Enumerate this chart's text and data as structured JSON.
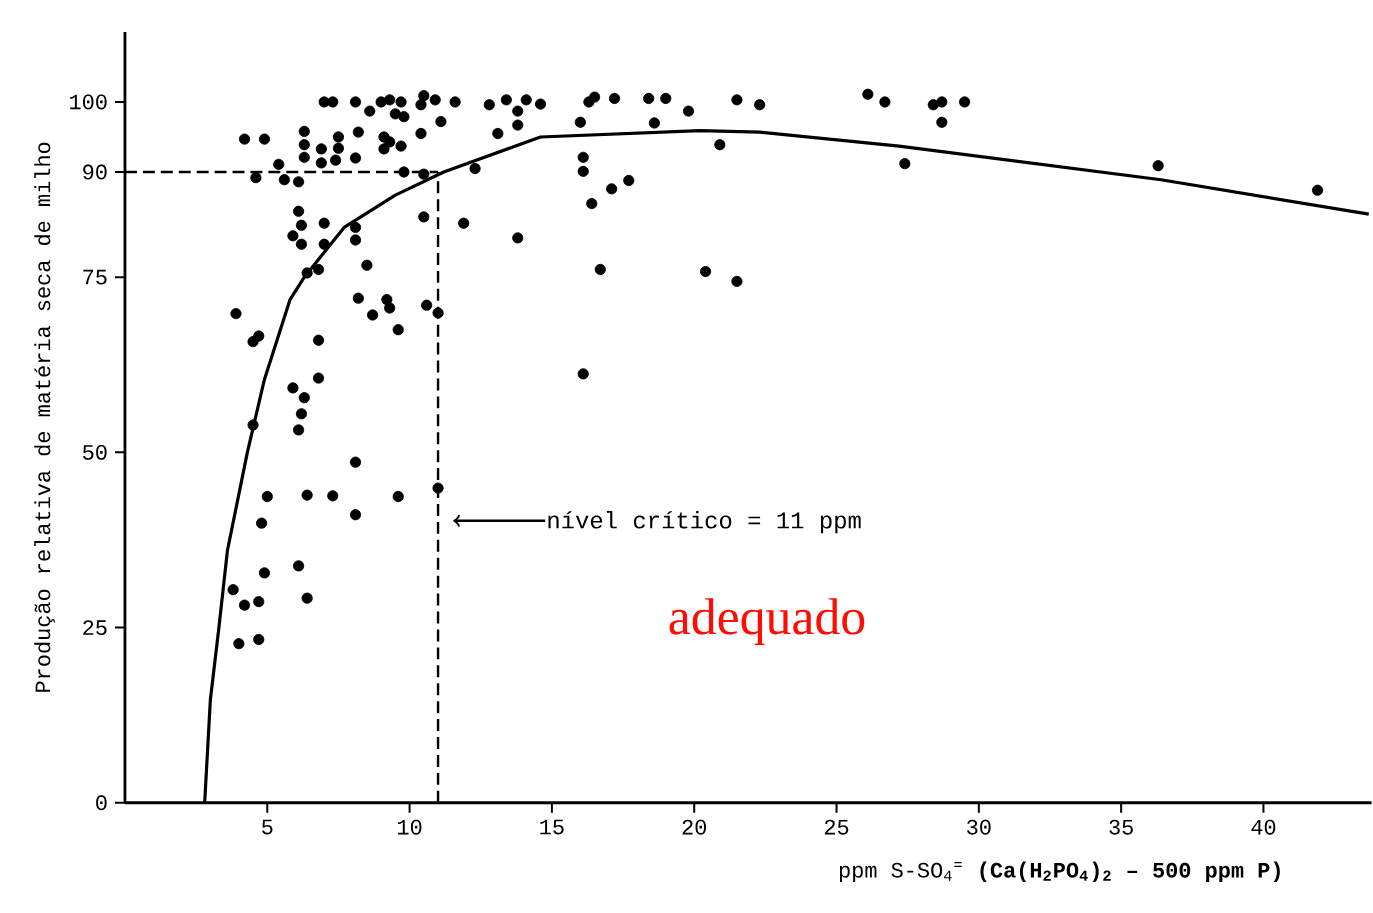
{
  "chart_data": {
    "type": "scatter",
    "xlabel": "ppm S-SO$_{4}$$^{=}$ **(Ca(H$_{2}$PO$_{4}$)$_{2}$ – 500 ppm P)**",
    "ylabel": "Produção relativa de matéria seca de milho",
    "xlim": [
      0,
      43.8
    ],
    "ylim": [
      0,
      110
    ],
    "xticks": [
      5,
      10,
      15,
      20,
      25,
      30,
      35,
      40
    ],
    "yticks": [
      0,
      25,
      50,
      75,
      90,
      100
    ],
    "series": [
      {
        "color": "#000000",
        "marker": "circle",
        "x": [
          4.2,
          4.9,
          4.6,
          5.4,
          5.6,
          6.1,
          6.3,
          6.3,
          6.3,
          6.1,
          6.2,
          5.9,
          6.2,
          6.4,
          6.8,
          6.9,
          6.9,
          7.0,
          7.3,
          7.4,
          7.5,
          7.5,
          7.0,
          7.0,
          8.1,
          8.2,
          8.1,
          8.1,
          8.1,
          8.6,
          9.0,
          9.3,
          9.7,
          9.1,
          9.1,
          9.3,
          9.7,
          9.5,
          9.8,
          9.8,
          10.4,
          10.5,
          10.9,
          10.4,
          11.1,
          10.5,
          11.6,
          10.5,
          12.3,
          11.9,
          8.5,
          8.2,
          8.7,
          9.2,
          9.3,
          9.6,
          10.6,
          11.0,
          3.9,
          4.5,
          4.7,
          6.8,
          6.8,
          5.9,
          6.3,
          6.2,
          6.1,
          4.5,
          8.1,
          5.0,
          6.4,
          7.3,
          9.6,
          11.0,
          8.1,
          4.8,
          4.9,
          6.1,
          3.8,
          4.2,
          4.7,
          6.4,
          4.0,
          4.7,
          12.8,
          13.4,
          13.8,
          14.1,
          14.6,
          13.1,
          13.8,
          16.0,
          16.1,
          16.1,
          16.3,
          16.5,
          17.2,
          18.4,
          19.0,
          18.6,
          19.8,
          17.1,
          17.7,
          16.4,
          13.8,
          16.7,
          20.4,
          21.5,
          16.1,
          20.9,
          21.5,
          22.3,
          26.1,
          26.7,
          27.4,
          28.4,
          28.7,
          28.7,
          29.5,
          36.3,
          41.9
        ],
        "values": [
          94.7,
          94.7,
          89.2,
          91.1,
          88.9,
          88.6,
          95.8,
          93.9,
          92.1,
          84.4,
          82.4,
          80.9,
          79.7,
          75.6,
          76.1,
          91.3,
          93.3,
          100,
          100,
          91.7,
          93.4,
          95.0,
          82.7,
          79.7,
          100,
          95.7,
          92.0,
          82.1,
          80.3,
          98.7,
          100,
          100.3,
          100,
          95.0,
          93.3,
          94.3,
          93.7,
          98.3,
          97.9,
          90,
          99.6,
          100.9,
          100.3,
          95.5,
          97.2,
          89.7,
          100,
          83.6,
          90.5,
          82.7,
          76.7,
          72.0,
          69.6,
          71.8,
          70.6,
          67.5,
          71.0,
          69.9,
          69.8,
          65.8,
          66.6,
          66.0,
          60.6,
          59.2,
          57.8,
          55.5,
          53.2,
          53.9,
          48.6,
          43.7,
          43.9,
          43.8,
          43.7,
          44.9,
          41.1,
          39.9,
          32.8,
          33.8,
          30.4,
          28.2,
          28.7,
          29.2,
          22.7,
          23.3,
          99.6,
          100.3,
          98.7,
          100.3,
          99.7,
          95.5,
          96.7,
          97.1,
          92.1,
          90.1,
          100,
          100.7,
          100.5,
          100.5,
          100.5,
          97.0,
          98.7,
          87.6,
          88.8,
          85.5,
          80.6,
          76.1,
          75.8,
          74.4,
          61.2,
          93.9,
          100.3,
          99.6,
          101.1,
          100,
          91.2,
          99.6,
          100,
          97.1,
          100,
          90.9,
          87.4
        ]
      },
      {
        "type": "line",
        "color": "#000000",
        "marker": "none",
        "x": [
          2.8,
          3.0,
          3.3,
          3.6,
          4.3,
          4.9,
          5.8,
          6.3,
          7.7,
          9.5,
          11.2,
          14.6,
          20.2,
          22.3,
          27.2,
          36.4,
          43.7
        ],
        "values": [
          0,
          14.7,
          25,
          36,
          50,
          60.4,
          71.8,
          75,
          82.1,
          86.7,
          90,
          95.0,
          95.9,
          95.7,
          93.7,
          88.9,
          84.0
        ]
      }
    ],
    "ref_lines": [
      {
        "axis": "y",
        "value": 90,
        "line_style": "dashed"
      },
      {
        "axis": "x",
        "value": 11,
        "line_style": "dashed"
      }
    ],
    "annotations": [
      "nível crítico = 11 ppm",
      "adequado"
    ]
  }
}
